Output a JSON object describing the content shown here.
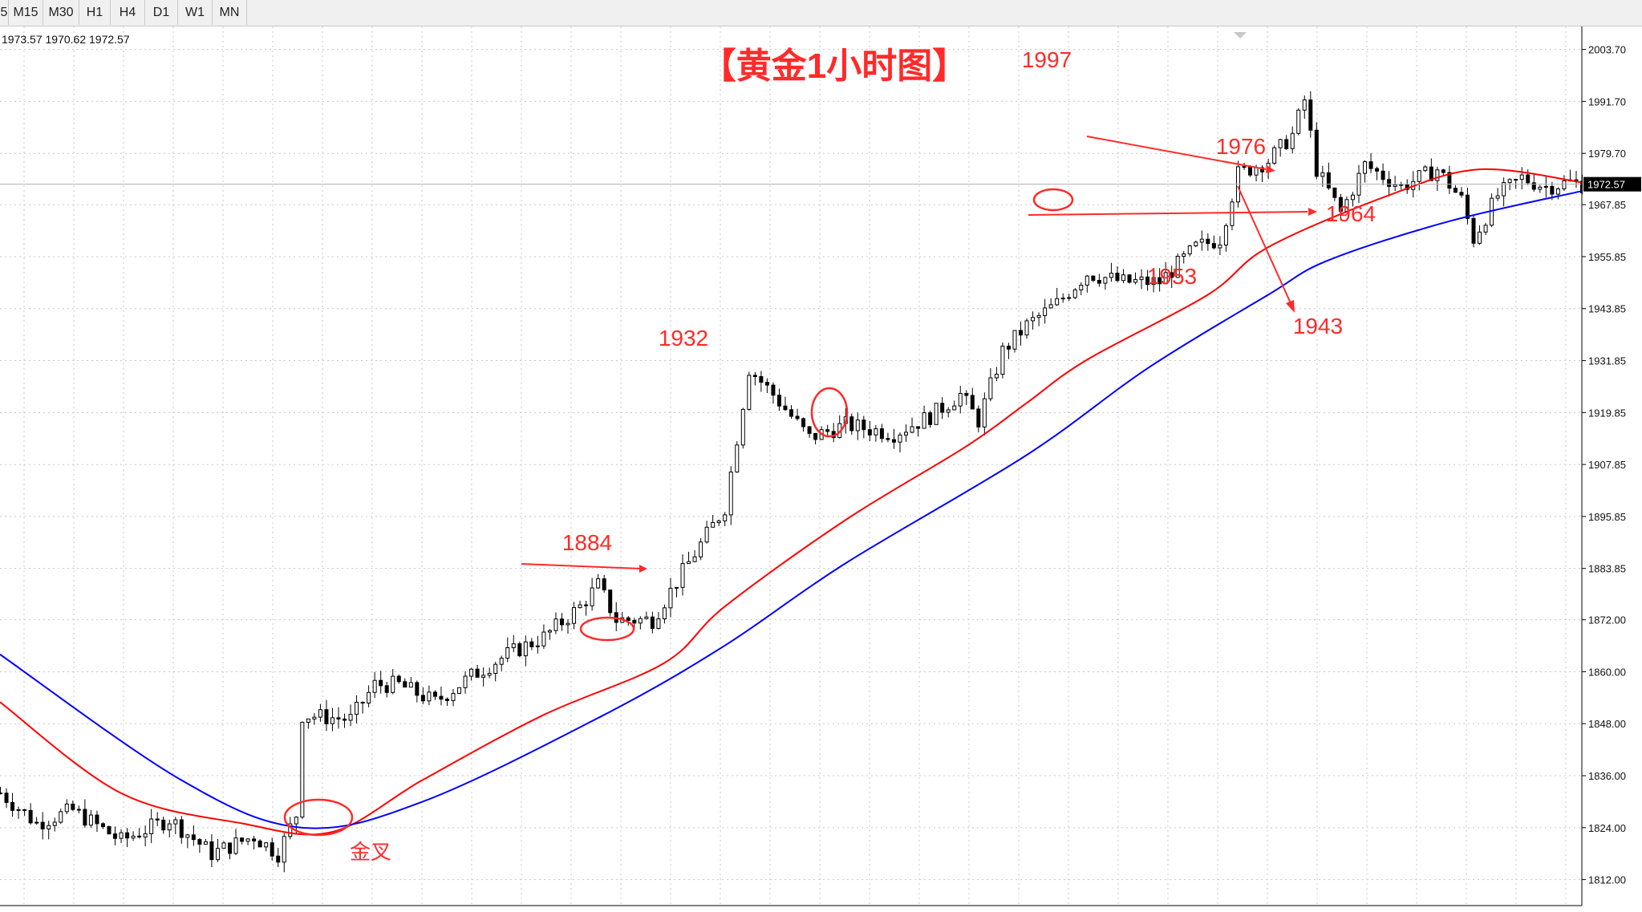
{
  "toolbar": {
    "timeframes": [
      "5",
      "M15",
      "M30",
      "H1",
      "H4",
      "D1",
      "W1",
      "MN"
    ]
  },
  "ohlc_readout": "1973.57 1970.62 1972.57",
  "colors": {
    "ma_fast": "#ff0000",
    "ma_slow": "#0000ff",
    "annotation": "#ff2a2a",
    "candle": "#000000",
    "grid": "#c8c8c8",
    "current_price_bg": "#000000"
  },
  "chart_data": {
    "type": "line",
    "title": "【黄金1小时图】",
    "ylim": [
      1806,
      2009
    ],
    "yticks": [
      2003.7,
      1991.7,
      1979.7,
      1967.85,
      1955.85,
      1943.85,
      1931.85,
      1919.85,
      1907.85,
      1895.85,
      1883.85,
      1872.0,
      1860.0,
      1848.0,
      1836.0,
      1824.0,
      1812.0
    ],
    "ytick_labels": [
      "2003.70",
      "1991.70",
      "1979.70",
      "1967.85",
      "1955.85",
      "1943.85",
      "1931.85",
      "1919.85",
      "1907.85",
      "1895.85",
      "1883.85",
      "1872.00",
      "1860.00",
      "1848.00",
      "1836.00",
      "1824.00",
      "1812.00"
    ],
    "current_price": 1972.57,
    "current_price_label": "1972.57",
    "bars": 240,
    "price_path": [
      [
        0,
        1832
      ],
      [
        6,
        1825
      ],
      [
        12,
        1828
      ],
      [
        20,
        1821
      ],
      [
        28,
        1826
      ],
      [
        35,
        1818
      ],
      [
        42,
        1822
      ],
      [
        46,
        1818
      ],
      [
        49,
        1827
      ],
      [
        50,
        1850
      ],
      [
        58,
        1849
      ],
      [
        62,
        1857
      ],
      [
        66,
        1857
      ],
      [
        72,
        1853
      ],
      [
        78,
        1859
      ],
      [
        84,
        1864
      ],
      [
        90,
        1868
      ],
      [
        96,
        1875
      ],
      [
        99,
        1880
      ],
      [
        102,
        1872
      ],
      [
        108,
        1872
      ],
      [
        113,
        1883
      ],
      [
        120,
        1898
      ],
      [
        124,
        1930
      ],
      [
        128,
        1924
      ],
      [
        134,
        1914
      ],
      [
        140,
        1917
      ],
      [
        148,
        1915
      ],
      [
        154,
        1919
      ],
      [
        159,
        1924
      ],
      [
        162,
        1918
      ],
      [
        166,
        1934
      ],
      [
        170,
        1940
      ],
      [
        175,
        1945
      ],
      [
        180,
        1952
      ],
      [
        186,
        1950
      ],
      [
        192,
        1950
      ],
      [
        198,
        1958
      ],
      [
        202,
        1960
      ],
      [
        205,
        1975
      ],
      [
        210,
        1978
      ],
      [
        214,
        1984
      ],
      [
        216,
        1992
      ],
      [
        218,
        1976
      ],
      [
        222,
        1966
      ],
      [
        226,
        1977
      ],
      [
        232,
        1972
      ],
      [
        238,
        1976
      ],
      [
        242,
        1969
      ],
      [
        244,
        1960
      ],
      [
        248,
        1970
      ],
      [
        252,
        1974
      ],
      [
        256,
        1972
      ],
      [
        260,
        1973
      ],
      [
        262,
        1972.5
      ]
    ],
    "series": [
      {
        "name": "",
        "color": "#ff0000",
        "points": [
          [
            0,
            1853
          ],
          [
            20,
            1832
          ],
          [
            40,
            1825
          ],
          [
            55,
            1823
          ],
          [
            70,
            1835
          ],
          [
            90,
            1850
          ],
          [
            110,
            1862
          ],
          [
            120,
            1875
          ],
          [
            140,
            1895
          ],
          [
            160,
            1912
          ],
          [
            170,
            1922
          ],
          [
            180,
            1932
          ],
          [
            200,
            1947
          ],
          [
            210,
            1958
          ],
          [
            230,
            1970
          ],
          [
            245,
            1976
          ],
          [
            262,
            1973
          ]
        ]
      },
      {
        "name": "",
        "color": "#0000ff",
        "points": [
          [
            0,
            1864
          ],
          [
            30,
            1835
          ],
          [
            50,
            1824
          ],
          [
            70,
            1830
          ],
          [
            100,
            1850
          ],
          [
            120,
            1866
          ],
          [
            140,
            1885
          ],
          [
            170,
            1910
          ],
          [
            190,
            1930
          ],
          [
            210,
            1947
          ],
          [
            220,
            1955
          ],
          [
            240,
            1964
          ],
          [
            262,
            1971
          ]
        ]
      }
    ],
    "annotations": [
      {
        "text": "1997",
        "role": "price-label"
      },
      {
        "text": "1976",
        "role": "price-label"
      },
      {
        "text": "1964",
        "role": "price-label"
      },
      {
        "text": "1953",
        "role": "price-label"
      },
      {
        "text": "1943",
        "role": "price-label"
      },
      {
        "text": "1932",
        "role": "price-label"
      },
      {
        "text": "1884",
        "role": "price-label"
      },
      {
        "text": "金叉",
        "role": "text-label"
      }
    ]
  }
}
